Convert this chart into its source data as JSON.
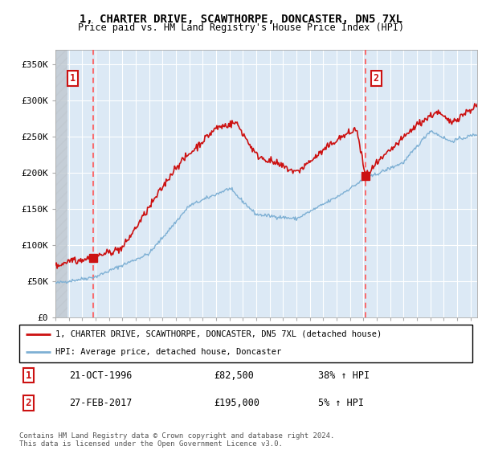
{
  "title": "1, CHARTER DRIVE, SCAWTHORPE, DONCASTER, DN5 7XL",
  "subtitle": "Price paid vs. HM Land Registry's House Price Index (HPI)",
  "ylabel_ticks": [
    "£0",
    "£50K",
    "£100K",
    "£150K",
    "£200K",
    "£250K",
    "£300K",
    "£350K"
  ],
  "ytick_values": [
    0,
    50000,
    100000,
    150000,
    200000,
    250000,
    300000,
    350000
  ],
  "ylim": [
    0,
    370000
  ],
  "xlim_start": 1994.0,
  "xlim_end": 2025.5,
  "sale1_date": 1996.81,
  "sale1_price": 82500,
  "sale1_label": "1",
  "sale2_date": 2017.15,
  "sale2_price": 195000,
  "sale2_label": "2",
  "legend_line1": "1, CHARTER DRIVE, SCAWTHORPE, DONCASTER, DN5 7XL (detached house)",
  "legend_line2": "HPI: Average price, detached house, Doncaster",
  "annotation1_date": "21-OCT-1996",
  "annotation1_price": "£82,500",
  "annotation1_hpi": "38% ↑ HPI",
  "annotation2_date": "27-FEB-2017",
  "annotation2_price": "£195,000",
  "annotation2_hpi": "5% ↑ HPI",
  "footer": "Contains HM Land Registry data © Crown copyright and database right 2024.\nThis data is licensed under the Open Government Licence v3.0.",
  "hpi_color": "#7eb0d4",
  "price_color": "#cc1111",
  "sale_marker_color": "#cc1111",
  "dashed_line_color": "#ff5555",
  "box_color": "#cc1111",
  "bg_color": "#dce9f5"
}
